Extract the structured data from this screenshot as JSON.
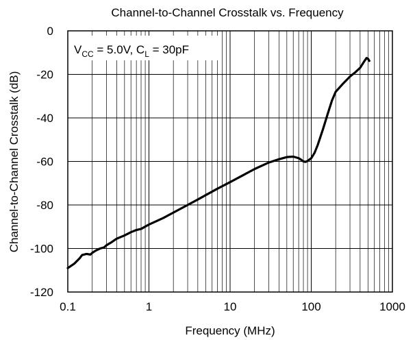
{
  "chart_data": {
    "type": "line",
    "title": "Channel-to-Channel Crosstalk vs. Frequency",
    "xlabel": "Frequency (MHz)",
    "ylabel": "Channel-to-Channel Crosstalk (dB)",
    "x_scale": "log",
    "xlim": [
      0.1,
      1000
    ],
    "ylim": [
      -120,
      0
    ],
    "x_ticks": [
      0.1,
      1,
      10,
      100,
      1000
    ],
    "x_tick_labels": [
      "0.1",
      "1",
      "10",
      "100",
      "1000"
    ],
    "y_ticks": [
      0,
      -20,
      -40,
      -60,
      -80,
      -100,
      -120
    ],
    "y_tick_labels": [
      "0",
      "-20",
      "-40",
      "-60",
      "-80",
      "-100",
      "-120"
    ],
    "grid": true,
    "annotation": {
      "vcc_main": "V",
      "vcc_sub": "CC",
      "vcc_value": " = 5.0V, ",
      "cl_main": "C",
      "cl_sub": "L",
      "cl_value": " = 30pF"
    },
    "series": [
      {
        "x": [
          0.1,
          0.12,
          0.14,
          0.15,
          0.17,
          0.19,
          0.2,
          0.22,
          0.25,
          0.28,
          0.3,
          0.35,
          0.4,
          0.5,
          0.6,
          0.7,
          0.8,
          1,
          1.5,
          2,
          3,
          4,
          5,
          7,
          10,
          15,
          20,
          30,
          40,
          50,
          60,
          70,
          75,
          80,
          85,
          90,
          100,
          110,
          120,
          140,
          160,
          180,
          200,
          250,
          300,
          350,
          400,
          450,
          480,
          500,
          520
        ],
        "y": [
          -109,
          -107,
          -104.5,
          -103,
          -102.5,
          -102.8,
          -102,
          -101,
          -100,
          -99.5,
          -98.5,
          -97,
          -95.5,
          -94,
          -92.5,
          -91.5,
          -91,
          -89,
          -86,
          -83.5,
          -80,
          -77.5,
          -75.5,
          -72.5,
          -69.5,
          -66,
          -63.5,
          -60.5,
          -59,
          -58,
          -57.8,
          -58.5,
          -59.2,
          -60,
          -60.2,
          -59.8,
          -58.5,
          -56,
          -52.5,
          -45,
          -38,
          -32,
          -28,
          -24,
          -21,
          -19,
          -17,
          -14,
          -12.5,
          -12.8,
          -13.8
        ]
      }
    ]
  }
}
